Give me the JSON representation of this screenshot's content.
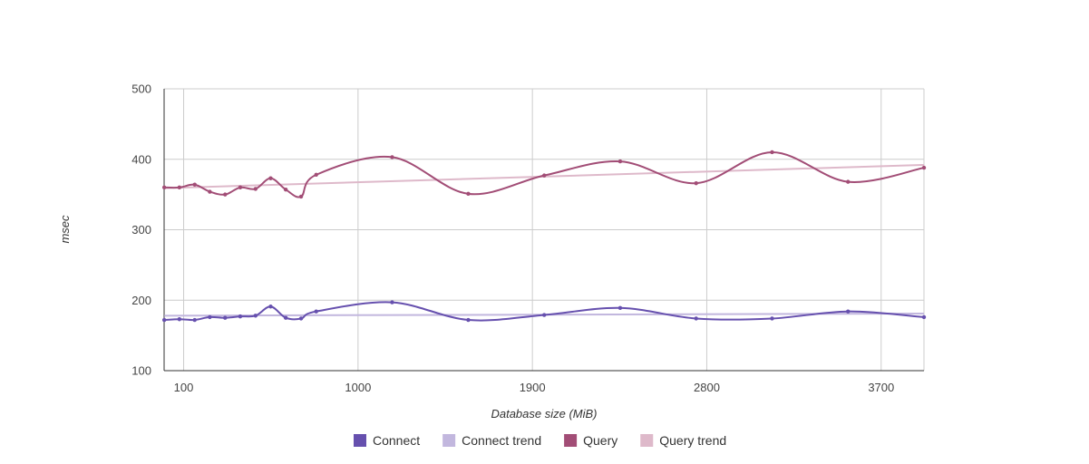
{
  "chart_data": {
    "type": "line",
    "xlabel": "Database size (MiB)",
    "ylabel": "msec",
    "xlim": [
      -0.8,
      3921
    ],
    "ylim": [
      100,
      500
    ],
    "x_ticks": [
      100,
      1000,
      1900,
      2800,
      3700
    ],
    "y_ticks": [
      100,
      200,
      300,
      400,
      500
    ],
    "grid": true,
    "legend_position": "bottom",
    "colors": {
      "Connect": "#6650ae",
      "Connect trend": "#c2b7de",
      "Query": "#a24d76",
      "Query trend": "#deb9ca"
    },
    "x": [
      0,
      78,
      157,
      235,
      314,
      392,
      471,
      549,
      627,
      706,
      784,
      1176,
      1569,
      1961,
      2353,
      2745,
      3137,
      3529,
      3921
    ],
    "series": [
      {
        "name": "Connect",
        "values": [
          172,
          173,
          172,
          176,
          175,
          177,
          178,
          191,
          175,
          174,
          184,
          197,
          172,
          179,
          189,
          174,
          174,
          184,
          176
        ]
      },
      {
        "name": "Query",
        "values": [
          360,
          360,
          364,
          354,
          350,
          360,
          358,
          373,
          357,
          347,
          378,
          403,
          351,
          377,
          397,
          366,
          410,
          368,
          388
        ]
      }
    ],
    "trends": [
      {
        "name": "Connect trend",
        "values": [
          178,
          181
        ]
      },
      {
        "name": "Query trend",
        "values": [
          359,
          392
        ]
      }
    ]
  }
}
